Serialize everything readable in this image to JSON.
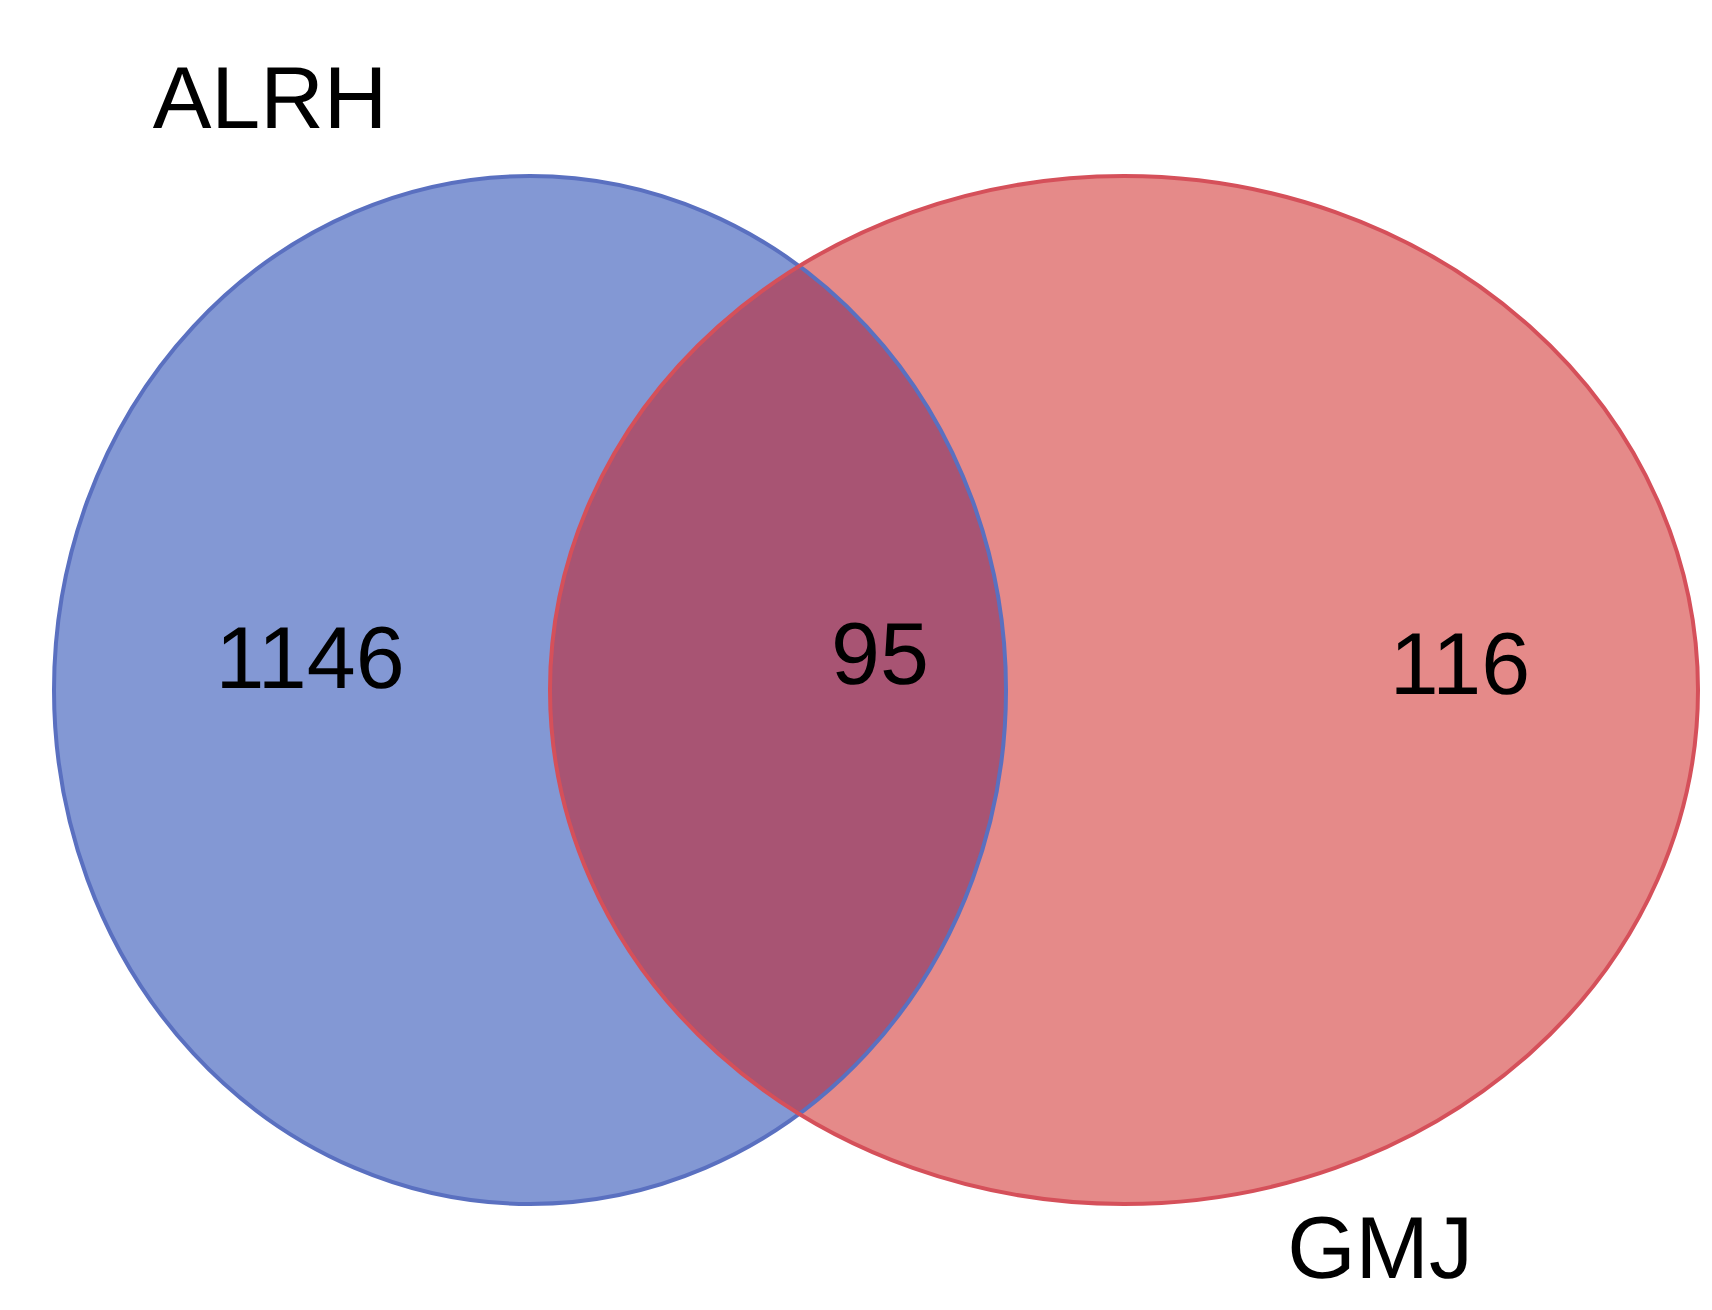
{
  "chart_data": {
    "type": "other",
    "categories": [
      null,
      null,
      null
    ],
    "values": [
      1146,
      95,
      116
    ],
    "colors": [
      "#8398d4",
      "#a85473",
      "#e58a89"
    ],
    "annotations": [
      "ALRH",
      "GMJ"
    ],
    "data_labels": true
  }
}
